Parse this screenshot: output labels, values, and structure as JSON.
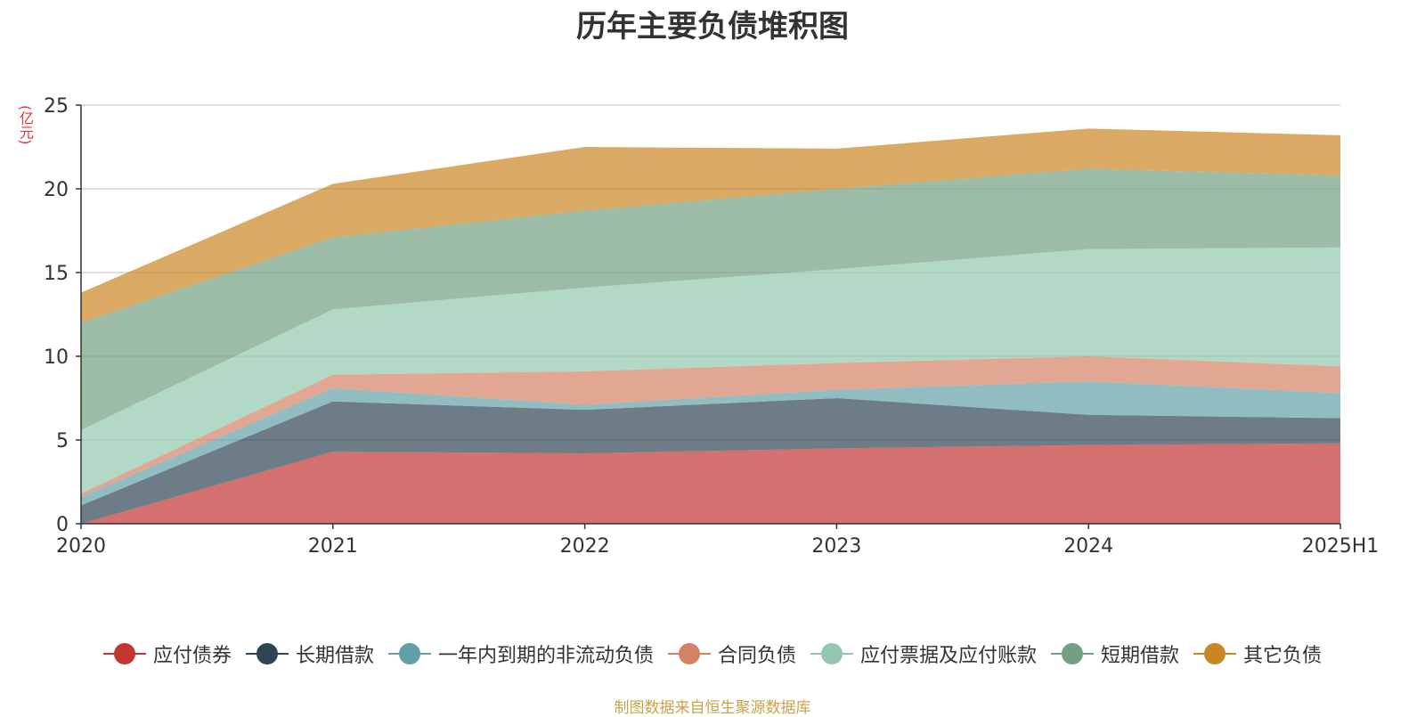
{
  "chart_data": {
    "type": "area",
    "stacked": true,
    "title": "历年主要负债堆积图",
    "ylabel": "(亿元)",
    "categories": [
      "2020",
      "2021",
      "2022",
      "2023",
      "2024",
      "2025H1"
    ],
    "ylim": [
      0,
      25
    ],
    "yticks": [
      0,
      5,
      10,
      15,
      20,
      25
    ],
    "grid": true,
    "legend_position": "bottom",
    "series": [
      {
        "name": "应付债券",
        "color": "#c23531",
        "values": [
          0.0,
          4.3,
          4.2,
          4.5,
          4.7,
          4.8
        ]
      },
      {
        "name": "长期借款",
        "color": "#2f4554",
        "values": [
          1.1,
          3.0,
          2.6,
          3.0,
          1.8,
          1.5
        ]
      },
      {
        "name": "一年内到期的非流动负债",
        "color": "#61a0a8",
        "values": [
          0.5,
          0.8,
          0.3,
          0.5,
          2.0,
          1.5
        ]
      },
      {
        "name": "合同负债",
        "color": "#d48265",
        "values": [
          0.2,
          0.8,
          2.0,
          1.6,
          1.5,
          1.6
        ]
      },
      {
        "name": "应付票据及应付账款",
        "color": "#91c7ae",
        "values": [
          3.8,
          3.9,
          5.0,
          5.6,
          6.4,
          7.1
        ]
      },
      {
        "name": "短期借款",
        "color": "#749f83",
        "values": [
          6.4,
          4.3,
          4.6,
          4.8,
          4.8,
          4.3
        ]
      },
      {
        "name": "其它负债",
        "color": "#ca8622",
        "values": [
          1.8,
          3.2,
          3.8,
          2.4,
          2.4,
          2.4
        ]
      }
    ],
    "source": "制图数据来自恒生聚源数据库"
  }
}
